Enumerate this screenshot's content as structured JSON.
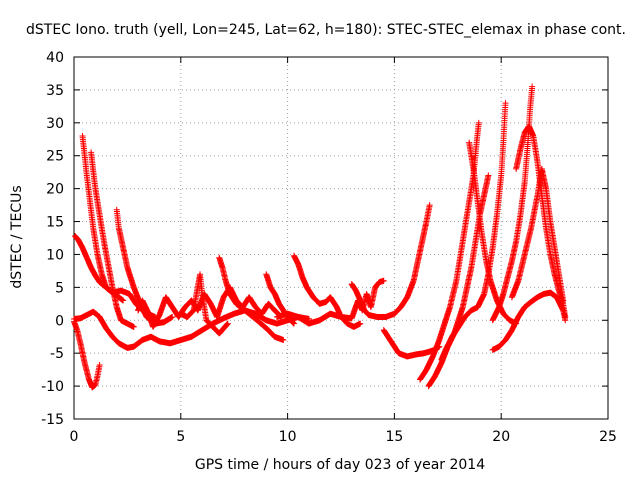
{
  "chart_data": {
    "type": "scatter",
    "title": "dSTEC Iono. truth (yell, Lon=245, Lat=62, h=180): STEC-STEC_elemax in phase cont.",
    "xlabel": "GPS time / hours of day 023 of year 2014",
    "ylabel": "dSTEC  / TECUs",
    "xlim": [
      0,
      25
    ],
    "ylim": [
      -15,
      40
    ],
    "xticks": [
      0,
      5,
      10,
      15,
      20,
      25
    ],
    "yticks": [
      -15,
      -10,
      -5,
      0,
      5,
      10,
      15,
      20,
      25,
      30,
      35,
      40
    ],
    "grid": true,
    "marker": "+",
    "colors": {
      "series": "#ff0000",
      "grid": "#a0a0a0",
      "axis": "#000000"
    },
    "series": [
      {
        "points": [
          [
            0.05,
            12.8
          ],
          [
            0.2,
            12.2
          ],
          [
            0.4,
            11
          ],
          [
            0.6,
            9.5
          ],
          [
            0.8,
            8
          ],
          [
            1.0,
            6.8
          ],
          [
            1.2,
            5.8
          ],
          [
            1.5,
            5
          ],
          [
            1.8,
            4.2
          ],
          [
            2.1,
            3.5
          ],
          [
            2.3,
            3
          ]
        ]
      },
      {
        "points": [
          [
            0.0,
            -0.2
          ],
          [
            0.15,
            -1.5
          ],
          [
            0.3,
            -3.5
          ],
          [
            0.5,
            -6.5
          ],
          [
            0.7,
            -9
          ],
          [
            0.85,
            -10.2
          ],
          [
            1.0,
            -9.8
          ],
          [
            1.1,
            -8.5
          ],
          [
            1.2,
            -6.8
          ]
        ]
      },
      {
        "points": [
          [
            0.4,
            28
          ],
          [
            0.5,
            25
          ],
          [
            0.6,
            22
          ],
          [
            0.75,
            18
          ],
          [
            0.9,
            14
          ],
          [
            1.1,
            10
          ],
          [
            1.3,
            7
          ],
          [
            1.5,
            5
          ],
          [
            1.8,
            4.2
          ],
          [
            2.2,
            4.5
          ],
          [
            2.6,
            4
          ],
          [
            2.9,
            2.5
          ],
          [
            3.3,
            1.2
          ],
          [
            3.8,
            0.5
          ]
        ]
      },
      {
        "points": [
          [
            0.8,
            25.5
          ],
          [
            1.0,
            20
          ],
          [
            1.2,
            16
          ],
          [
            1.4,
            12
          ],
          [
            1.6,
            8.5
          ],
          [
            1.8,
            5
          ],
          [
            2.0,
            2
          ],
          [
            2.2,
            0
          ],
          [
            2.5,
            -0.5
          ],
          [
            2.8,
            -1
          ]
        ]
      },
      {
        "points": [
          [
            2.0,
            16.8
          ],
          [
            2.1,
            14
          ],
          [
            2.3,
            11
          ],
          [
            2.5,
            8
          ],
          [
            2.8,
            5
          ],
          [
            3.1,
            2.5
          ],
          [
            3.4,
            0.5
          ],
          [
            3.8,
            -0.5
          ],
          [
            4.2,
            -0.3
          ],
          [
            4.6,
            0.5
          ]
        ]
      },
      {
        "points": [
          [
            0.0,
            0.2
          ],
          [
            0.3,
            0.3
          ],
          [
            0.6,
            0.8
          ],
          [
            0.9,
            1.3
          ],
          [
            1.2,
            0.5
          ],
          [
            1.5,
            -1.2
          ],
          [
            1.8,
            -2.5
          ],
          [
            2.1,
            -3.5
          ],
          [
            2.5,
            -4.2
          ],
          [
            2.8,
            -4
          ],
          [
            3.2,
            -3
          ],
          [
            3.6,
            -2.5
          ],
          [
            4.0,
            -3.2
          ],
          [
            4.5,
            -3.5
          ],
          [
            5.0,
            -3
          ],
          [
            5.5,
            -2.5
          ],
          [
            6.0,
            -1.5
          ],
          [
            6.5,
            -0.5
          ],
          [
            7.0,
            0.3
          ],
          [
            7.5,
            1
          ],
          [
            8.0,
            1.5
          ],
          [
            8.5,
            0.2
          ],
          [
            9.0,
            -1.2
          ],
          [
            9.4,
            -2.5
          ],
          [
            9.8,
            -3
          ]
        ]
      },
      {
        "points": [
          [
            3.0,
            1.5
          ],
          [
            3.2,
            3
          ],
          [
            3.5,
            1
          ],
          [
            3.7,
            -1
          ],
          [
            4.0,
            0.8
          ],
          [
            4.3,
            3.5
          ],
          [
            4.6,
            2
          ],
          [
            4.9,
            0.5
          ],
          [
            5.2,
            2
          ],
          [
            5.5,
            3
          ],
          [
            5.8,
            1.5
          ],
          [
            6.1,
            4
          ],
          [
            6.4,
            2.5
          ],
          [
            6.7,
            0.5
          ],
          [
            7.0,
            3.5
          ],
          [
            7.3,
            5
          ],
          [
            7.6,
            3
          ],
          [
            7.9,
            2
          ],
          [
            8.2,
            3.5
          ],
          [
            8.5,
            2
          ],
          [
            8.8,
            1
          ],
          [
            9.1,
            2.5
          ],
          [
            9.4,
            1.5
          ],
          [
            9.7,
            0.5
          ]
        ]
      },
      {
        "points": [
          [
            5.0,
            1
          ],
          [
            5.3,
            0.5
          ],
          [
            5.6,
            1.5
          ],
          [
            5.9,
            7
          ],
          [
            6.0,
            4
          ],
          [
            6.2,
            0
          ],
          [
            6.5,
            -1
          ],
          [
            6.8,
            -2
          ],
          [
            7.2,
            -0.5
          ]
        ]
      },
      {
        "points": [
          [
            6.8,
            9.5
          ],
          [
            6.95,
            8
          ],
          [
            7.1,
            6
          ],
          [
            7.3,
            4
          ],
          [
            7.6,
            2.5
          ],
          [
            8.0,
            1.5
          ],
          [
            8.5,
            1
          ],
          [
            9.0,
            0
          ],
          [
            9.5,
            -0.5
          ],
          [
            10.0,
            0
          ],
          [
            10.5,
            0.5
          ],
          [
            11.0,
            0.2
          ]
        ]
      },
      {
        "points": [
          [
            9.0,
            7
          ],
          [
            9.2,
            5
          ],
          [
            9.4,
            4
          ],
          [
            9.6,
            2.5
          ],
          [
            9.8,
            1.5
          ],
          [
            10.0,
            0.5
          ],
          [
            10.3,
            -0.5
          ]
        ]
      },
      {
        "points": [
          [
            10.3,
            9.8
          ],
          [
            10.5,
            8.5
          ],
          [
            10.7,
            6.5
          ],
          [
            10.9,
            5
          ],
          [
            11.2,
            3.5
          ],
          [
            11.5,
            2.5
          ],
          [
            11.8,
            2.8
          ],
          [
            12.0,
            3.5
          ],
          [
            12.3,
            2
          ],
          [
            12.5,
            0.5
          ],
          [
            12.8,
            -0.5
          ],
          [
            13.1,
            -1
          ],
          [
            13.4,
            -0.5
          ]
        ]
      },
      {
        "points": [
          [
            9.5,
            0.5
          ],
          [
            10.0,
            1
          ],
          [
            10.5,
            0.5
          ],
          [
            11.0,
            -0.5
          ],
          [
            11.5,
            0
          ],
          [
            12.0,
            1
          ],
          [
            12.5,
            0.5
          ],
          [
            13.0,
            0.3
          ],
          [
            13.3,
            3
          ],
          [
            13.5,
            1.5
          ],
          [
            13.7,
            4
          ],
          [
            13.9,
            2
          ],
          [
            14.1,
            5
          ],
          [
            14.3,
            5.8
          ],
          [
            14.5,
            6
          ]
        ]
      },
      {
        "points": [
          [
            13.0,
            5.5
          ],
          [
            13.2,
            4.5
          ],
          [
            13.4,
            3
          ],
          [
            13.6,
            1.5
          ],
          [
            13.8,
            0.8
          ],
          [
            14.2,
            0.5
          ],
          [
            14.6,
            0.5
          ],
          [
            15.0,
            1
          ],
          [
            15.3,
            2
          ],
          [
            15.6,
            3.5
          ],
          [
            15.9,
            6
          ],
          [
            16.1,
            9
          ],
          [
            16.3,
            12
          ],
          [
            16.5,
            15
          ],
          [
            16.65,
            17.5
          ]
        ]
      },
      {
        "points": [
          [
            14.5,
            -1.5
          ],
          [
            14.9,
            -3.5
          ],
          [
            15.2,
            -5
          ],
          [
            15.6,
            -5.5
          ],
          [
            16.0,
            -5.2
          ],
          [
            16.4,
            -5
          ],
          [
            16.8,
            -4.6
          ],
          [
            17.1,
            -4
          ]
        ]
      },
      {
        "points": [
          [
            16.2,
            -9
          ],
          [
            16.5,
            -7.5
          ],
          [
            16.8,
            -5.5
          ],
          [
            17.1,
            -3
          ],
          [
            17.3,
            -1
          ],
          [
            17.6,
            2
          ],
          [
            17.9,
            6
          ],
          [
            18.1,
            10
          ],
          [
            18.3,
            14
          ],
          [
            18.5,
            18
          ],
          [
            18.7,
            22
          ],
          [
            18.85,
            27
          ],
          [
            18.95,
            30
          ]
        ]
      },
      {
        "points": [
          [
            16.6,
            -10
          ],
          [
            16.9,
            -8.5
          ],
          [
            17.2,
            -6.5
          ],
          [
            17.5,
            -4
          ],
          [
            17.8,
            -2
          ],
          [
            18.0,
            0
          ],
          [
            18.2,
            2
          ],
          [
            18.4,
            5
          ],
          [
            18.6,
            8
          ],
          [
            18.8,
            12
          ],
          [
            19.0,
            16
          ],
          [
            19.2,
            19
          ],
          [
            19.4,
            22
          ]
        ]
      },
      {
        "points": [
          [
            17.2,
            -6
          ],
          [
            17.4,
            -4.5
          ],
          [
            17.7,
            -2.5
          ],
          [
            18.0,
            -1
          ],
          [
            18.3,
            0.5
          ],
          [
            18.6,
            1.5
          ],
          [
            18.9,
            2
          ],
          [
            19.2,
            4
          ],
          [
            19.4,
            7
          ],
          [
            19.6,
            11
          ],
          [
            19.8,
            16
          ],
          [
            20.0,
            22
          ],
          [
            20.1,
            27
          ],
          [
            20.2,
            33
          ]
        ]
      },
      {
        "points": [
          [
            18.5,
            27
          ],
          [
            18.7,
            23
          ],
          [
            18.9,
            18
          ],
          [
            19.1,
            13
          ],
          [
            19.3,
            9
          ],
          [
            19.5,
            6
          ],
          [
            19.8,
            3
          ],
          [
            20.1,
            1
          ],
          [
            20.4,
            0
          ],
          [
            20.7,
            -0.5
          ]
        ]
      },
      {
        "points": [
          [
            19.6,
            -4.5
          ],
          [
            19.9,
            -4
          ],
          [
            20.2,
            -3
          ],
          [
            20.5,
            -1.5
          ],
          [
            20.8,
            0.5
          ],
          [
            21.1,
            2
          ],
          [
            21.4,
            2.8
          ],
          [
            21.7,
            3.5
          ],
          [
            22.0,
            4
          ],
          [
            22.3,
            4.2
          ],
          [
            22.6,
            3.5
          ],
          [
            22.9,
            1.5
          ],
          [
            23.0,
            0
          ]
        ]
      },
      {
        "points": [
          [
            19.6,
            0
          ],
          [
            19.9,
            2
          ],
          [
            20.1,
            4
          ],
          [
            20.3,
            6.5
          ],
          [
            20.5,
            9
          ],
          [
            20.7,
            12
          ],
          [
            20.9,
            16
          ],
          [
            21.1,
            21
          ],
          [
            21.25,
            27
          ],
          [
            21.35,
            32
          ],
          [
            21.45,
            35.5
          ]
        ]
      },
      {
        "points": [
          [
            20.7,
            23
          ],
          [
            20.9,
            26
          ],
          [
            21.1,
            28.5
          ],
          [
            21.3,
            29.5
          ],
          [
            21.5,
            28
          ],
          [
            21.7,
            24
          ],
          [
            21.9,
            19
          ],
          [
            22.1,
            14
          ],
          [
            22.3,
            10
          ],
          [
            22.5,
            7
          ],
          [
            22.7,
            4.5
          ],
          [
            22.9,
            2.5
          ],
          [
            23.0,
            0.5
          ]
        ]
      },
      {
        "points": [
          [
            20.5,
            3.5
          ],
          [
            20.8,
            6
          ],
          [
            21.1,
            10
          ],
          [
            21.4,
            14
          ],
          [
            21.7,
            19
          ],
          [
            21.9,
            23
          ],
          [
            22.1,
            20
          ],
          [
            22.3,
            15
          ],
          [
            22.5,
            11
          ],
          [
            22.7,
            7
          ],
          [
            22.9,
            3
          ]
        ]
      }
    ]
  }
}
